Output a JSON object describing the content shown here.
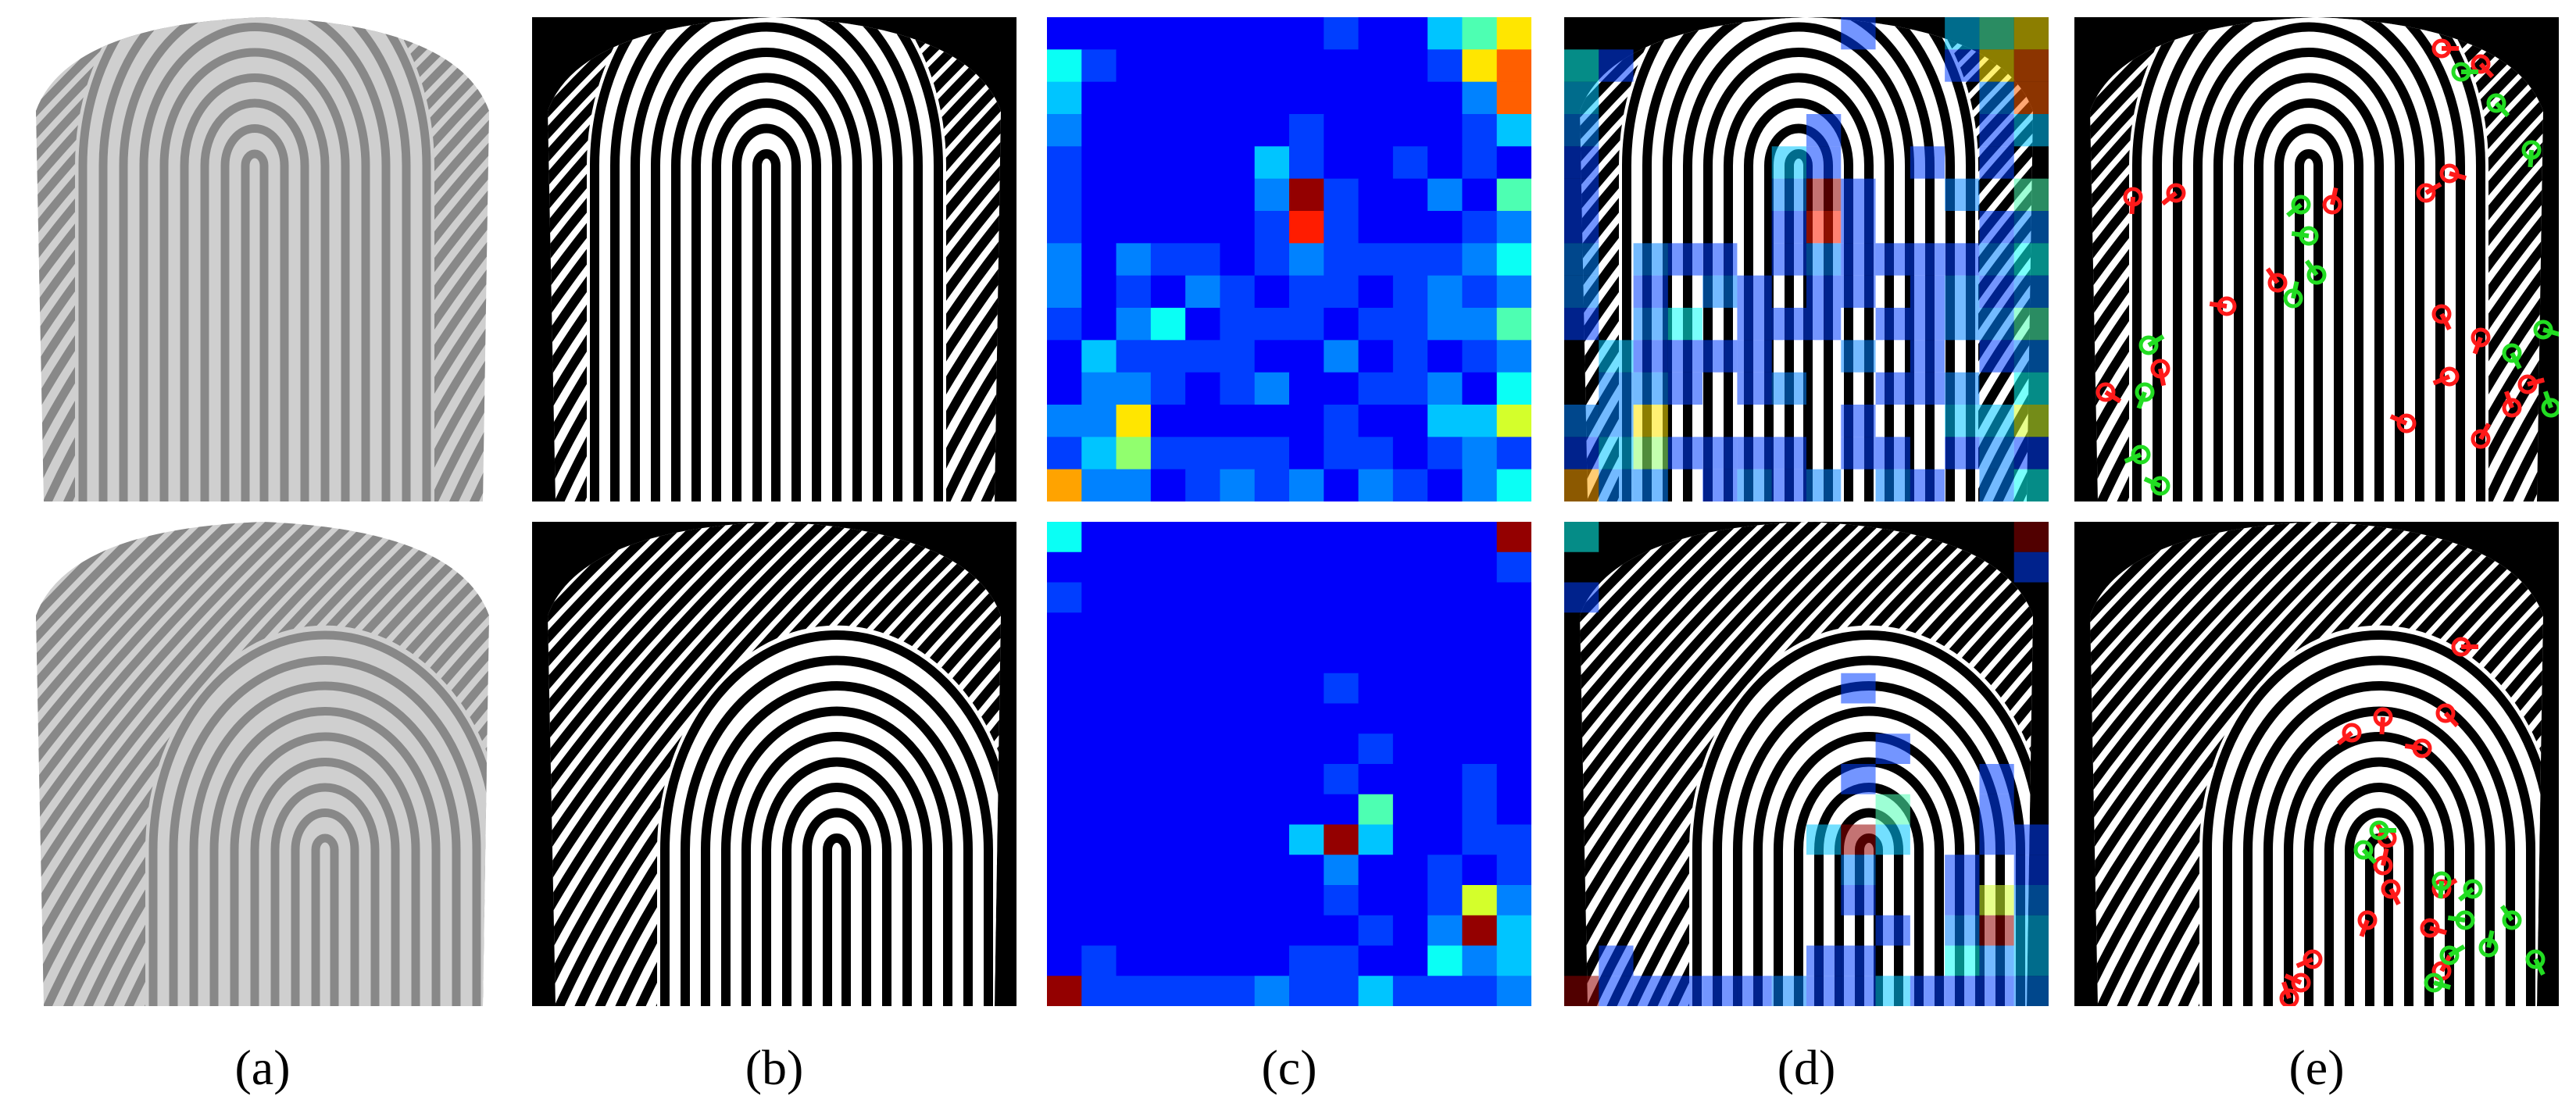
{
  "figure": {
    "captions": [
      "(a)",
      "(b)",
      "(c)",
      "(d)",
      "(e)"
    ],
    "rows": [
      {
        "heatmap": [
          [
            1,
            1,
            1,
            1,
            1,
            1,
            1,
            1,
            2,
            1,
            1,
            4,
            6,
            9
          ],
          [
            5,
            2,
            1,
            1,
            1,
            1,
            1,
            1,
            1,
            1,
            1,
            2,
            9,
            11
          ],
          [
            4,
            1,
            1,
            1,
            1,
            1,
            1,
            1,
            1,
            1,
            1,
            1,
            3,
            11
          ],
          [
            3,
            1,
            1,
            1,
            1,
            1,
            1,
            2,
            1,
            1,
            1,
            1,
            2,
            4
          ],
          [
            2,
            1,
            1,
            1,
            1,
            1,
            4,
            2,
            1,
            1,
            2,
            1,
            2,
            1
          ],
          [
            2,
            1,
            1,
            1,
            1,
            1,
            3,
            14,
            2,
            1,
            1,
            3,
            1,
            6
          ],
          [
            2,
            1,
            1,
            1,
            1,
            1,
            2,
            12,
            2,
            1,
            1,
            1,
            2,
            3
          ],
          [
            3,
            1,
            3,
            2,
            2,
            1,
            2,
            3,
            2,
            2,
            2,
            2,
            3,
            5
          ],
          [
            3,
            1,
            2,
            1,
            3,
            2,
            1,
            2,
            2,
            1,
            2,
            3,
            2,
            3
          ],
          [
            2,
            1,
            3,
            5,
            1,
            2,
            2,
            2,
            1,
            2,
            2,
            3,
            3,
            6
          ],
          [
            1,
            4,
            2,
            2,
            2,
            2,
            1,
            1,
            3,
            1,
            2,
            1,
            2,
            3
          ],
          [
            1,
            3,
            3,
            2,
            1,
            2,
            3,
            1,
            1,
            2,
            2,
            3,
            1,
            5
          ],
          [
            3,
            3,
            9,
            1,
            1,
            1,
            1,
            1,
            2,
            1,
            1,
            4,
            4,
            8
          ],
          [
            2,
            4,
            7,
            2,
            2,
            2,
            2,
            1,
            2,
            2,
            1,
            2,
            3,
            2
          ],
          [
            10,
            3,
            3,
            1,
            2,
            3,
            2,
            3,
            1,
            3,
            2,
            1,
            3,
            5
          ]
        ]
      },
      {
        "heatmap": [
          [
            5,
            1,
            1,
            1,
            1,
            1,
            1,
            1,
            1,
            1,
            1,
            1,
            1,
            14
          ],
          [
            1,
            1,
            1,
            1,
            1,
            1,
            1,
            1,
            1,
            1,
            1,
            1,
            1,
            2
          ],
          [
            2,
            1,
            1,
            1,
            1,
            1,
            1,
            1,
            1,
            1,
            1,
            1,
            1,
            1
          ],
          [
            1,
            1,
            1,
            1,
            1,
            1,
            1,
            1,
            1,
            1,
            1,
            1,
            1,
            1
          ],
          [
            1,
            1,
            1,
            1,
            1,
            1,
            1,
            1,
            1,
            1,
            1,
            1,
            1,
            1
          ],
          [
            1,
            1,
            1,
            1,
            1,
            1,
            1,
            1,
            2,
            1,
            1,
            1,
            1,
            1
          ],
          [
            1,
            1,
            1,
            1,
            1,
            1,
            1,
            1,
            1,
            1,
            1,
            1,
            1,
            1
          ],
          [
            1,
            1,
            1,
            1,
            1,
            1,
            1,
            1,
            1,
            2,
            1,
            1,
            1,
            1
          ],
          [
            1,
            1,
            1,
            1,
            1,
            1,
            1,
            1,
            2,
            1,
            1,
            1,
            2,
            1
          ],
          [
            1,
            1,
            1,
            1,
            1,
            1,
            1,
            1,
            1,
            6,
            1,
            1,
            2,
            1
          ],
          [
            1,
            1,
            1,
            1,
            1,
            1,
            1,
            4,
            14,
            4,
            1,
            1,
            2,
            2
          ],
          [
            1,
            1,
            1,
            1,
            1,
            1,
            1,
            1,
            3,
            1,
            1,
            2,
            1,
            2
          ],
          [
            1,
            1,
            1,
            1,
            1,
            1,
            1,
            1,
            2,
            1,
            1,
            2,
            8,
            3
          ],
          [
            1,
            1,
            1,
            1,
            1,
            1,
            1,
            1,
            1,
            2,
            1,
            3,
            14,
            4
          ],
          [
            1,
            2,
            1,
            1,
            1,
            1,
            1,
            2,
            2,
            1,
            1,
            5,
            3,
            4
          ],
          [
            14,
            2,
            2,
            2,
            2,
            2,
            3,
            2,
            2,
            4,
            2,
            2,
            2,
            3
          ]
        ]
      }
    ]
  }
}
